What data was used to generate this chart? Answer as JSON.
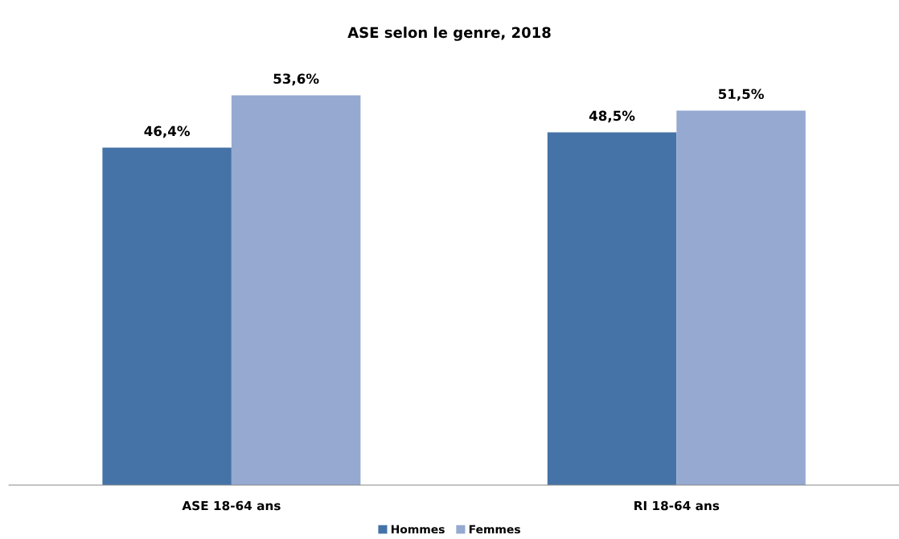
{
  "chart_data": {
    "type": "bar",
    "title": "ASE selon le genre, 2018",
    "categories": [
      "ASE 18-64 ans",
      "RI 18-64 ans"
    ],
    "series": [
      {
        "name": "Hommes",
        "color": "#4573a7",
        "values": [
          46.4,
          48.5
        ],
        "value_labels": [
          "46,4%",
          "48,5%"
        ]
      },
      {
        "name": "Femmes",
        "color": "#95a9d1",
        "values": [
          53.6,
          51.5
        ],
        "value_labels": [
          "53,6%",
          "51,5%"
        ]
      }
    ],
    "legend": "bottom",
    "grid": false
  }
}
